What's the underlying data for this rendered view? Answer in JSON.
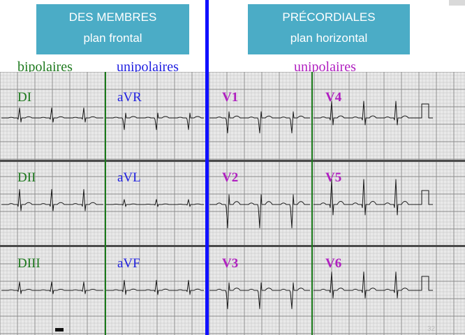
{
  "colors": {
    "header_bg": "#4bacc6",
    "bipolar": "#1f7a1f",
    "unipolar_limb": "#1f1fe0",
    "unipolar_prec": "#b020c0",
    "separator": "#1010ff",
    "column_divider": "#1a7a1a",
    "trace": "#1a1a1a"
  },
  "headers": {
    "limb": {
      "line1": "DES MEMBRES",
      "line2": "plan frontal"
    },
    "precordial": {
      "line1": "PRÉCORDIALES",
      "line2": "plan horizontal"
    }
  },
  "groups": {
    "bipolar": "bipolaires",
    "unipolar_limb": "unipolaires",
    "unipolar_precordial": "unipolaires"
  },
  "leads": {
    "di": "DI",
    "dii": "DII",
    "diii": "DIII",
    "avr": "aVR",
    "avl": "aVL",
    "avf": "aVF",
    "v1": "V1",
    "v2": "V2",
    "v3": "V3",
    "v4": "V4",
    "v5": "V5",
    "v6": "V6"
  },
  "page_number": "32"
}
